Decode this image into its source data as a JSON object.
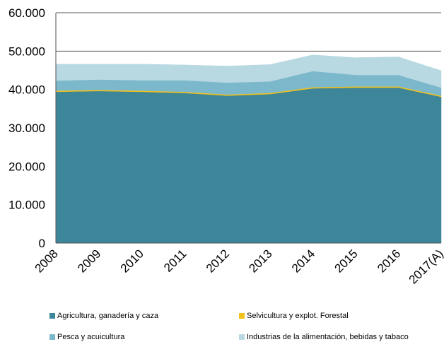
{
  "chart_data": {
    "type": "area",
    "stacked": true,
    "categories": [
      "2008",
      "2009",
      "2010",
      "2011",
      "2012",
      "2013",
      "2014",
      "2015",
      "2016",
      "2017(A)"
    ],
    "series": [
      {
        "name": "Agricultura, ganadería y caza",
        "color": "#3d8599",
        "values": [
          39400,
          39600,
          39400,
          39100,
          38400,
          38800,
          40300,
          40500,
          40500,
          38100
        ]
      },
      {
        "name": "Selvicultura y explot. Forestal",
        "color": "#f2c11a",
        "values": [
          300,
          300,
          300,
          300,
          300,
          300,
          300,
          300,
          300,
          300
        ]
      },
      {
        "name": "Pesca y acuicultura",
        "color": "#7cb8cc",
        "values": [
          2600,
          2700,
          2700,
          3000,
          3100,
          3000,
          4200,
          3000,
          3000,
          2100
        ]
      },
      {
        "name": "Industrias de la alimentación, bebidas y tabaco",
        "color": "#b8d8e2",
        "values": [
          4300,
          4000,
          4200,
          4000,
          4300,
          4400,
          4200,
          4500,
          4700,
          4400
        ]
      }
    ],
    "yticks": [
      "0",
      "10.000",
      "20.000",
      "30.000",
      "40.000",
      "50.000",
      "60.000"
    ],
    "ylim": [
      0,
      60000
    ],
    "grid": true,
    "legend_position": "bottom"
  }
}
